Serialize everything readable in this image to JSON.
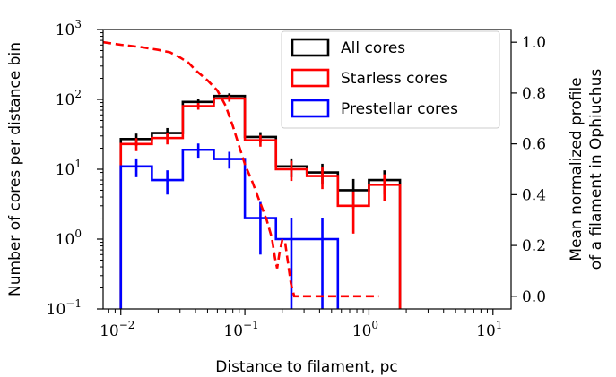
{
  "chart_data": {
    "type": "line",
    "xlabel": "Distance to filament, pc",
    "ylabel": "Number of cores per distance bin",
    "ylabel_right": [
      "Mean normalized profile",
      "of a filament in Ophiuchus"
    ],
    "xscale": "log",
    "yscale": "log",
    "xlim": [
      0.0072,
      14
    ],
    "ylim": [
      0.1,
      1000
    ],
    "ylim_right": [
      -0.05,
      1.05
    ],
    "x_ticks": [
      {
        "value": 0.01,
        "base": "10",
        "exp": "−2"
      },
      {
        "value": 0.1,
        "base": "10",
        "exp": "−1"
      },
      {
        "value": 1,
        "base": "10",
        "exp": "0"
      },
      {
        "value": 10,
        "base": "10",
        "exp": "1"
      }
    ],
    "y_ticks": [
      {
        "value": 0.1,
        "base": "10",
        "exp": "−1"
      },
      {
        "value": 1,
        "base": "10",
        "exp": "0"
      },
      {
        "value": 10,
        "base": "10",
        "exp": "1"
      },
      {
        "value": 100,
        "base": "10",
        "exp": "2"
      },
      {
        "value": 1000,
        "base": "10",
        "exp": "3"
      }
    ],
    "y_right_ticks": [
      "0.0",
      "0.2",
      "0.4",
      "0.6",
      "0.8",
      "1.0"
    ],
    "legend_position": "top-right",
    "bin_edges": [
      0.01,
      0.0178,
      0.0316,
      0.0562,
      0.1,
      0.178,
      0.316,
      0.562,
      1.0,
      1.78,
      3.16
    ],
    "series": [
      {
        "name": "All cores",
        "color": "#000000",
        "values": [
          27,
          33,
          92,
          112,
          29,
          11,
          9,
          5,
          7,
          0
        ],
        "errors": [
          [
            27,
            0.2
          ],
          [
            33,
            0.18
          ],
          [
            92,
            0.1
          ],
          [
            112,
            0.09
          ],
          [
            29,
            0.17
          ],
          [
            11,
            0.3
          ],
          [
            9,
            0.33
          ],
          [
            5,
            0.45
          ],
          [
            7,
            0.38
          ],
          [
            0,
            0
          ]
        ]
      },
      {
        "name": "Starless cores",
        "color": "#ff0000",
        "values": [
          23,
          28,
          80,
          103,
          26,
          10,
          8,
          3,
          6,
          0
        ],
        "errors": [
          [
            23,
            0.21
          ],
          [
            28,
            0.19
          ],
          [
            80,
            0.11
          ],
          [
            103,
            0.1
          ],
          [
            26,
            0.19
          ],
          [
            10,
            0.32
          ],
          [
            8,
            0.35
          ],
          [
            3,
            0.6
          ],
          [
            6,
            0.41
          ],
          [
            0,
            0
          ]
        ]
      },
      {
        "name": "Prestellar cores",
        "color": "#0000ff",
        "values": [
          11,
          7,
          19,
          14,
          2,
          1,
          1,
          0,
          0,
          0
        ],
        "errors": [
          [
            11,
            0.3
          ],
          [
            7,
            0.38
          ],
          [
            19,
            0.23
          ],
          [
            14,
            0.27
          ],
          [
            2,
            0.7
          ],
          [
            1,
            1.0
          ],
          [
            1,
            1.0
          ],
          [
            0,
            0
          ],
          [
            0,
            0
          ],
          [
            0,
            0
          ]
        ]
      }
    ],
    "profile": {
      "color": "#ff0000",
      "style": "dashed",
      "x": [
        0.0072,
        0.01,
        0.015,
        0.02,
        0.025,
        0.03,
        0.035,
        0.04,
        0.05,
        0.06,
        0.07,
        0.08,
        0.09,
        0.1,
        0.115,
        0.13,
        0.15,
        0.165,
        0.175,
        0.182,
        0.19,
        0.2,
        0.21,
        0.22,
        0.235,
        0.25,
        0.3,
        0.5,
        0.8,
        1.2
      ],
      "y": [
        1.0,
        0.99,
        0.98,
        0.97,
        0.96,
        0.94,
        0.92,
        0.89,
        0.85,
        0.81,
        0.75,
        0.67,
        0.59,
        0.52,
        0.45,
        0.38,
        0.3,
        0.23,
        0.15,
        0.11,
        0.17,
        0.22,
        0.22,
        0.15,
        0.05,
        0.0,
        0.0,
        0.0,
        0.0,
        0.0
      ]
    }
  }
}
